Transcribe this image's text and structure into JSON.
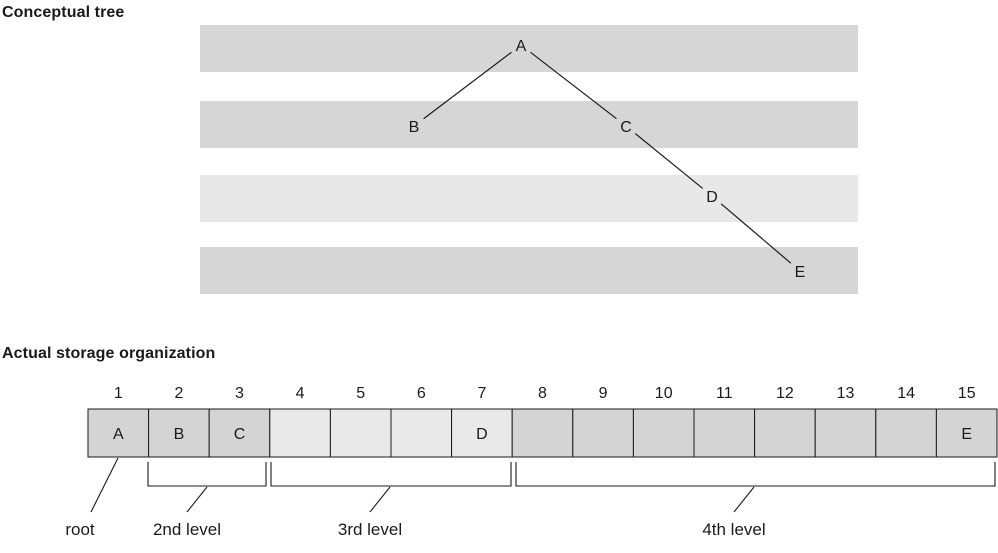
{
  "headings": {
    "conceptual": "Conceptual tree",
    "storage": "Actual storage organization"
  },
  "colors": {
    "band_dark": "#d6d6d6",
    "band_light": "#e8e8e8",
    "cell_dark": "#d4d4d4",
    "cell_light": "#e9e9e9",
    "cell_border": "#1a1a1a",
    "line": "#1a1a1a"
  },
  "tree": {
    "levels": [
      {
        "level": 1,
        "shade": "dark"
      },
      {
        "level": 2,
        "shade": "dark"
      },
      {
        "level": 3,
        "shade": "light"
      },
      {
        "level": 4,
        "shade": "dark"
      }
    ],
    "nodes": [
      {
        "id": "A",
        "label": "A",
        "level": 1
      },
      {
        "id": "B",
        "label": "B",
        "level": 2
      },
      {
        "id": "C",
        "label": "C",
        "level": 2
      },
      {
        "id": "D",
        "label": "D",
        "level": 3
      },
      {
        "id": "E",
        "label": "E",
        "level": 4
      }
    ],
    "edges": [
      [
        "A",
        "B"
      ],
      [
        "A",
        "C"
      ],
      [
        "C",
        "D"
      ],
      [
        "D",
        "E"
      ]
    ]
  },
  "storage": {
    "cells": [
      {
        "index": "1",
        "label": "A",
        "level": 1
      },
      {
        "index": "2",
        "label": "B",
        "level": 2
      },
      {
        "index": "3",
        "label": "C",
        "level": 2
      },
      {
        "index": "4",
        "label": "",
        "level": 3
      },
      {
        "index": "5",
        "label": "",
        "level": 3
      },
      {
        "index": "6",
        "label": "",
        "level": 3
      },
      {
        "index": "7",
        "label": "D",
        "level": 3
      },
      {
        "index": "8",
        "label": "",
        "level": 4
      },
      {
        "index": "9",
        "label": "",
        "level": 4
      },
      {
        "index": "10",
        "label": "",
        "level": 4
      },
      {
        "index": "11",
        "label": "",
        "level": 4
      },
      {
        "index": "12",
        "label": "",
        "level": 4
      },
      {
        "index": "13",
        "label": "",
        "level": 4
      },
      {
        "index": "14",
        "label": "",
        "level": 4
      },
      {
        "index": "15",
        "label": "E",
        "level": 4
      }
    ],
    "groups": [
      {
        "label": "root",
        "level": 1
      },
      {
        "label": "2nd level",
        "level": 2
      },
      {
        "label": "3rd level",
        "level": 3
      },
      {
        "label": "4th level",
        "level": 4
      }
    ]
  }
}
